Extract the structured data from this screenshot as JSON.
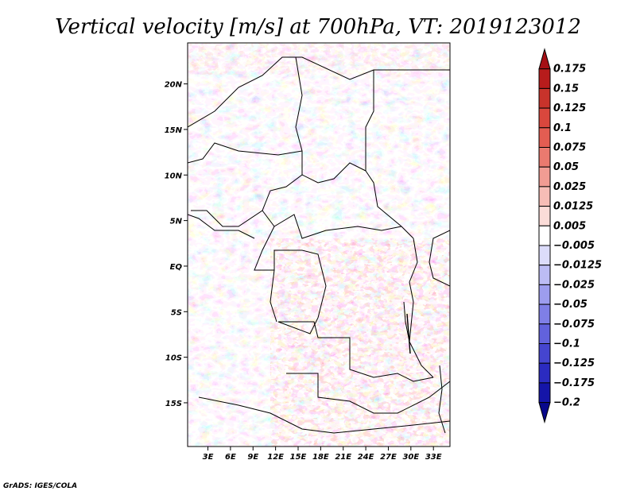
{
  "chart_data": {
    "type": "heatmap",
    "title": "Vertical velocity [m/s] at 700hPa, VT: 2019123012",
    "variable": "Vertical velocity",
    "units": "m/s",
    "level": "700hPa",
    "valid_time": "2019123012",
    "x_ticks": [
      {
        "value": 3,
        "label": "3E"
      },
      {
        "value": 6,
        "label": "6E"
      },
      {
        "value": 9,
        "label": "9E"
      },
      {
        "value": 12,
        "label": "12E"
      },
      {
        "value": 15,
        "label": "15E"
      },
      {
        "value": 18,
        "label": "18E"
      },
      {
        "value": 21,
        "label": "21E"
      },
      {
        "value": 24,
        "label": "24E"
      },
      {
        "value": 27,
        "label": "27E"
      },
      {
        "value": 30,
        "label": "30E"
      },
      {
        "value": 33,
        "label": "33E"
      }
    ],
    "y_ticks": [
      {
        "value": 20,
        "label": "20N"
      },
      {
        "value": 15,
        "label": "15N"
      },
      {
        "value": 10,
        "label": "10N"
      },
      {
        "value": 5,
        "label": "5N"
      },
      {
        "value": 0,
        "label": "EQ"
      },
      {
        "value": -5,
        "label": "5S"
      },
      {
        "value": -10,
        "label": "10S"
      },
      {
        "value": -15,
        "label": "15S"
      }
    ],
    "xlim": [
      0.3,
      35.2
    ],
    "ylim": [
      -19.8,
      24.5
    ],
    "colorbar": {
      "labels": [
        "0.175",
        "0.15",
        "0.125",
        "0.1",
        "0.075",
        "0.05",
        "0.025",
        "0.0125",
        "0.005",
        "−0.005",
        "−0.0125",
        "−0.025",
        "−0.05",
        "−0.075",
        "−0.1",
        "−0.125",
        "−0.175",
        "−0.2"
      ],
      "colors": [
        "#a50f15",
        "#b71c1c",
        "#c8332b",
        "#d9473d",
        "#e35d52",
        "#ea7a6f",
        "#f19c93",
        "#f6bdb6",
        "#fbdcd8",
        "#ffffff",
        "#dcdcfa",
        "#bcbcf4",
        "#9d9dee",
        "#7f7fe6",
        "#6262dc",
        "#4545cf",
        "#2b2bc0",
        "#1515a8",
        "#08088c"
      ]
    },
    "credit": "GrADS: IGES/COLA"
  }
}
